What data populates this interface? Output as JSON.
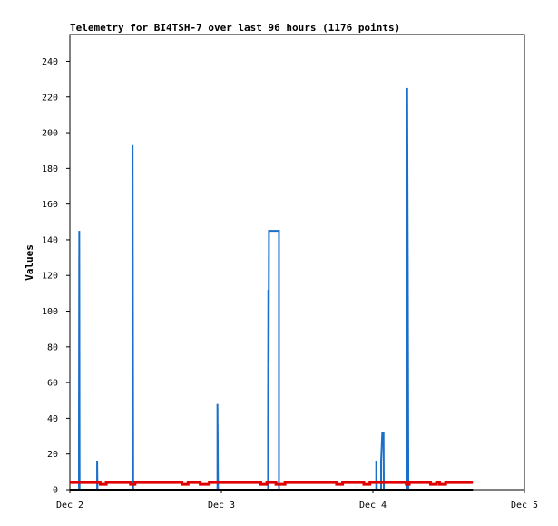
{
  "chart_data": {
    "type": "line",
    "title": "Telemetry for BI4TSH-7 over last 96 hours (1176 points)",
    "xlabel": "",
    "ylabel": "Values",
    "x_ticks": [
      "Dec 2",
      "Dec 3",
      "Dec 4",
      "Dec 5"
    ],
    "y_ticks": [
      0,
      20,
      40,
      60,
      80,
      100,
      120,
      140,
      160,
      180,
      200,
      220,
      240
    ],
    "ylim": [
      0,
      255
    ],
    "xlim_days": [
      0,
      3
    ],
    "grid": false,
    "legend": "none",
    "series": [
      {
        "color": "#1a6fc8",
        "points": [
          [
            0.0,
            0
          ],
          [
            0.06,
            0
          ],
          [
            0.06,
            32
          ],
          [
            0.062,
            145
          ],
          [
            0.064,
            0
          ],
          [
            0.18,
            0
          ],
          [
            0.18,
            16
          ],
          [
            0.182,
            0
          ],
          [
            0.414,
            0
          ],
          [
            0.414,
            193
          ],
          [
            0.416,
            97
          ],
          [
            0.418,
            0
          ],
          [
            0.974,
            0
          ],
          [
            0.974,
            48
          ],
          [
            0.976,
            25
          ],
          [
            0.978,
            0
          ],
          [
            1.308,
            0
          ],
          [
            1.308,
            40
          ],
          [
            1.31,
            112
          ],
          [
            1.312,
            72
          ],
          [
            1.314,
            145
          ],
          [
            1.38,
            145
          ],
          [
            1.38,
            0
          ],
          [
            2.022,
            0
          ],
          [
            2.022,
            16
          ],
          [
            2.024,
            8
          ],
          [
            2.026,
            0
          ],
          [
            2.054,
            0
          ],
          [
            2.054,
            16
          ],
          [
            2.058,
            24
          ],
          [
            2.062,
            32
          ],
          [
            2.07,
            32
          ],
          [
            2.072,
            0
          ],
          [
            2.226,
            0
          ],
          [
            2.226,
            225
          ],
          [
            2.23,
            128
          ],
          [
            2.234,
            0
          ],
          [
            2.66,
            0
          ]
        ]
      },
      {
        "color": "#000000",
        "points": [
          [
            0.0,
            0
          ],
          [
            2.66,
            0
          ]
        ]
      },
      {
        "color": "#e00000",
        "points": [
          [
            0.0,
            4
          ],
          [
            0.2,
            4
          ],
          [
            0.2,
            3
          ],
          [
            0.24,
            3
          ],
          [
            0.24,
            4
          ],
          [
            0.4,
            4
          ],
          [
            0.4,
            3
          ],
          [
            0.43,
            3
          ],
          [
            0.43,
            4
          ],
          [
            0.74,
            4
          ],
          [
            0.74,
            3
          ],
          [
            0.78,
            3
          ],
          [
            0.78,
            4
          ],
          [
            0.86,
            4
          ],
          [
            0.86,
            3
          ],
          [
            0.92,
            3
          ],
          [
            0.92,
            4
          ],
          [
            1.26,
            4
          ],
          [
            1.26,
            3
          ],
          [
            1.3,
            3
          ],
          [
            1.3,
            4
          ],
          [
            1.36,
            4
          ],
          [
            1.36,
            3
          ],
          [
            1.42,
            3
          ],
          [
            1.42,
            4
          ],
          [
            1.76,
            4
          ],
          [
            1.76,
            3
          ],
          [
            1.8,
            3
          ],
          [
            1.8,
            4
          ],
          [
            1.94,
            4
          ],
          [
            1.94,
            3
          ],
          [
            1.98,
            3
          ],
          [
            1.98,
            4
          ],
          [
            2.22,
            4
          ],
          [
            2.22,
            3
          ],
          [
            2.24,
            3
          ],
          [
            2.24,
            4
          ],
          [
            2.38,
            4
          ],
          [
            2.38,
            3
          ],
          [
            2.42,
            3
          ],
          [
            2.42,
            4
          ],
          [
            2.44,
            4
          ],
          [
            2.44,
            3
          ],
          [
            2.48,
            3
          ],
          [
            2.48,
            4
          ],
          [
            2.66,
            4
          ]
        ]
      }
    ]
  }
}
